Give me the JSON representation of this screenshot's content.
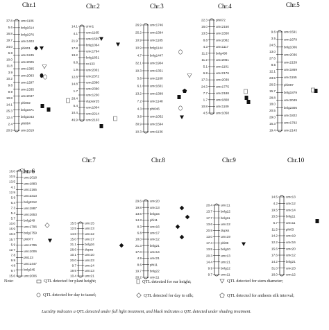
{
  "chromosomes": [
    {
      "title": "Chr.1",
      "dist": [
        "37.8",
        "5.6",
        "16.8",
        "19.7",
        "34.0",
        "6.8",
        "10.0",
        "11.8",
        "3.9",
        "10.2",
        "9.8",
        "9.9",
        "10.8",
        "14.1",
        "25.3",
        "12.4",
        "2.4",
        "20.9"
      ],
      "markers": [
        "umc1106",
        "bnlg1614",
        "bnlg1976",
        "umc1403",
        "phi001",
        "umc1245",
        "umc2025",
        "umc1395",
        "umc2083",
        "umc1297",
        "umc1335",
        "umc2047",
        "phi002",
        "bnlg1671",
        "bnlg1043",
        "phi064",
        "umc1819"
      ],
      "qtl": [
        [
          "",
          "",
          "",
          "",
          "solid-diamond",
          "",
          "",
          "",
          "",
          "",
          "",
          "",
          "",
          "",
          "",
          "",
          ""
        ],
        [
          "",
          "",
          "",
          "",
          "solid-tri",
          "",
          "",
          "",
          "solid-circle",
          "",
          "",
          "",
          "",
          "",
          "",
          "",
          ""
        ]
      ]
    },
    {
      "title": "Chr.2",
      "dist": [
        "14.1",
        "4.1",
        "21.9",
        "17.8",
        "19.2",
        "6.8",
        "1.9",
        "12.8",
        "14.8",
        "1.7",
        "28.4",
        "5.4",
        "10.4",
        "46.9"
      ],
      "markers": [
        "zmn1",
        "umc1165",
        "umc1555",
        "bnlg1064",
        "umc1794",
        "bnlg1831",
        "nc133",
        "umc2001",
        "umc2372",
        "umc2380",
        "umc2360",
        "umc1230",
        "dupssr25",
        "umc1004",
        "umc2214",
        "umc2103"
      ],
      "qtl": [
        [
          "",
          "",
          "solid-tri",
          "",
          "",
          "",
          "",
          "",
          "",
          "",
          "",
          "",
          "",
          "",
          "",
          "",
          "solid-rect"
        ]
      ]
    },
    {
      "title": "Chr.3",
      "dist": [
        "26.9",
        "25.2",
        "10.9",
        "10.9",
        "4.7",
        "32.1",
        "19.3",
        "5.6",
        "6.1",
        "13.2",
        "7.2",
        "4.3",
        "3.8",
        "30.9",
        "10.3"
      ],
      "markers": [
        "umc1746",
        "umc1394",
        "umc1185",
        "bnlg1144",
        "bnlg1447",
        "umc1904",
        "umc1351",
        "umc1160",
        "umc1601",
        "umc1399",
        "umc1148",
        "phi046",
        "umc1052",
        "umc1594",
        "umc1136"
      ],
      "qtl": [
        [
          "",
          "",
          "",
          "",
          "",
          "",
          "",
          "",
          "",
          "",
          "",
          "",
          "",
          "",
          ""
        ]
      ]
    },
    {
      "title": "Chr.4",
      "dist": [
        "22.3",
        "16.0",
        "13.5",
        "8.8",
        "4.3",
        "11.2",
        "11.2",
        "5.1",
        "6.8",
        "17.3",
        "24.3",
        "7.7",
        "1.7",
        "10.8",
        "4.5"
      ],
      "markers": [
        "phi072",
        "umc2150",
        "umc1550",
        "umc2082",
        "umc1117",
        "bnlg490",
        "umc2061",
        "umc1101",
        "umc2176",
        "umc2039",
        "umc1775",
        "umc2188",
        "umc1808",
        "umc1109",
        "umc1058"
      ],
      "qtl": [
        [
          "",
          "",
          "",
          "",
          "",
          "",
          "",
          "",
          "",
          "",
          "",
          "",
          "",
          "",
          ""
        ]
      ]
    },
    {
      "title": "Chr.5",
      "dist": [
        "9.6",
        "3.5",
        "24.5",
        "13.0",
        "27.6",
        "8.5",
        "12.1",
        "23.5",
        "26.5",
        "15.7",
        "28.8",
        "18.0",
        "20.5",
        "29.0",
        "15.3",
        "19.4"
      ],
      "markers": [
        "umc1591",
        "umc1679",
        "bnlg1006",
        "umc2036",
        "umc2159",
        "umc1869",
        "umc1155",
        "phi087",
        "bnlg1879",
        "umc2049",
        "bnlg2305",
        "umc1822",
        "umc1792",
        "umc2143"
      ],
      "qtl": [
        [
          "",
          "",
          "",
          "",
          "",
          "",
          "",
          "",
          "",
          "",
          "",
          "",
          "",
          ""
        ]
      ]
    },
    {
      "title": "Chr. 6",
      "dist": [
        "16.0",
        "10.5",
        "13.5",
        "4.1",
        "12.9",
        "5.9",
        "6.4",
        "7.3",
        "5.4",
        "5.7",
        "10.0",
        "16.9",
        "10.3",
        "15.7",
        "5.9",
        "12.7",
        "7.8",
        "9.9",
        "4.8",
        "9.7",
        "15.6"
      ],
      "markers": [
        "bnlg238",
        "umc1018",
        "umc1883",
        "umc2165",
        "umc2313",
        "bnlg2312",
        "umc1887",
        "umc1653",
        "bnlg249",
        "umc1796",
        "bnlg1759",
        "phi077",
        "umc1795",
        "umc1006",
        "phi123",
        "umc1447",
        "bnlg345",
        "umc2006"
      ],
      "qtl": [
        [
          "",
          "",
          "",
          "",
          "",
          "",
          "",
          "",
          "",
          "",
          "",
          "",
          "",
          "",
          "",
          "",
          "",
          ""
        ]
      ]
    },
    {
      "title": "Chr.7",
      "dist": [
        "15.5",
        "12.5",
        "14.8",
        "15.0",
        "31.1",
        "28.6",
        "10.1",
        "20.0",
        "9.7",
        "19.9",
        "10.4"
      ],
      "markers": [
        "umc15",
        "umc13",
        "umc12",
        "umc17",
        "bnlg16",
        "dupss",
        "umc10",
        "umc23",
        "umc14",
        "umc13",
        "umc21"
      ],
      "qtl": [
        [
          "",
          "",
          "",
          "",
          "",
          "",
          "",
          "",
          "",
          "",
          ""
        ]
      ]
    },
    {
      "title": "Chr.8",
      "dist": [
        "29.6",
        "19.8",
        "13.6",
        "14.3",
        "8.3",
        "6.8",
        "18.0",
        "21.3",
        "17.0",
        "4.9",
        "8.6",
        "19.7",
        "20.2"
      ],
      "markers": [
        "umc20",
        "umc13",
        "bnlg15",
        "phi11",
        "umc16",
        "umc17",
        "umc12",
        "bnlg21",
        "umc14",
        "umc21",
        "phi11",
        "bnlg22",
        "umc11"
      ],
      "qtl": [
        [
          "",
          "",
          "",
          "",
          "",
          "",
          "",
          "",
          "",
          "",
          "",
          "",
          ""
        ]
      ]
    },
    {
      "title": "Chr.9",
      "dist": [
        "20.4",
        "13.7",
        "17.7",
        "13.6",
        "20.9",
        "13.0",
        "17.4",
        "13.5",
        "20.3",
        "14.4",
        "9.9",
        "9.7"
      ],
      "markers": [
        "umc11",
        "bnlg12",
        "bnlg11",
        "umc12",
        "dupss",
        "umc19",
        "phi06",
        "bnlg10",
        "umc13",
        "umc21",
        "bnlg12",
        "umc11"
      ],
      "qtl": [
        [
          "",
          "",
          "",
          "",
          "",
          "",
          "",
          "",
          "",
          "",
          "",
          ""
        ]
      ]
    },
    {
      "title": "Chr.10",
      "dist": [
        "14.5",
        "4.2",
        "19.5",
        "15.5",
        "5.7",
        "11.5",
        "14.2",
        "12.2",
        "15.6",
        "17.6",
        "14.2",
        "31.0",
        "16.0"
      ],
      "markers": [
        "umc13",
        "umc12",
        "umc14",
        "bnlg11",
        "umc11",
        "phi03",
        "umc19",
        "umc16",
        "umc20",
        "umc12",
        "bnlg21",
        "umc23",
        "umc12"
      ],
      "qtl": [
        [
          "",
          "",
          "",
          "",
          "",
          "",
          "",
          "",
          "",
          "",
          "",
          "",
          ""
        ]
      ]
    }
  ],
  "legend": {
    "note": "Note:",
    "items": [
      {
        "icon": "outline-rect",
        "text": "QTL detected for plant height;"
      },
      {
        "icon": "outline-rect-tall",
        "text": "QTL detected for ear height;"
      },
      {
        "icon": "outline-tri-down",
        "text": "QTL detected for stem diameter;"
      },
      {
        "icon": "outline-circle",
        "text": "QTL detected for day to tassel;"
      },
      {
        "icon": "outline-diamond",
        "text": "QTL detected for day to silk;"
      },
      {
        "icon": "outline-pentagon",
        "text": "QTL detected for anthesis silk interval;"
      }
    ],
    "footer": "Lucidity indicates a QTL detected under full light treatment, and black indicates a QTL detected under shading treatment."
  }
}
